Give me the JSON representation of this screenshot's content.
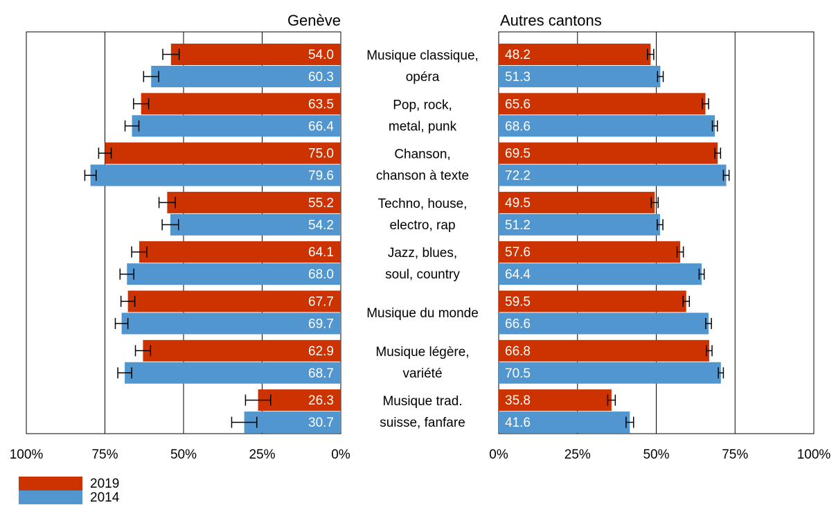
{
  "chart_data": {
    "type": "bar",
    "orientation": "horizontal",
    "layout": "butterfly",
    "categories": [
      [
        "Musique classique,",
        "opéra"
      ],
      [
        "Pop, rock,",
        "metal, punk"
      ],
      [
        "Chanson,",
        "chanson à texte"
      ],
      [
        "Techno, house,",
        "electro, rap"
      ],
      [
        "Jazz, blues,",
        "soul, country"
      ],
      [
        "Musique du monde"
      ],
      [
        "Musique légère,",
        "variété"
      ],
      [
        "Musique trad.",
        "suisse, fanfare"
      ]
    ],
    "panels": [
      {
        "title": "Genève",
        "direction": "leftward",
        "xlim": [
          0,
          100
        ],
        "ticks": [
          "100%",
          "75%",
          "50%",
          "25%",
          "0%"
        ],
        "tick_values": [
          100,
          75,
          50,
          25,
          0
        ],
        "series": [
          {
            "name": "2019",
            "values": [
              54.0,
              63.5,
              75.0,
              55.2,
              64.1,
              67.7,
              62.9,
              26.3
            ],
            "error": [
              2.6,
              2.4,
              2.0,
              2.6,
              2.4,
              2.2,
              2.4,
              4.0
            ]
          },
          {
            "name": "2014",
            "values": [
              60.3,
              66.4,
              79.6,
              54.2,
              68.0,
              69.7,
              68.7,
              30.7
            ],
            "error": [
              2.4,
              2.2,
              1.8,
              2.6,
              2.2,
              2.0,
              2.2,
              4.0
            ]
          }
        ],
        "labels": [
          [
            "54.0",
            "63.5",
            "75.0",
            "55.2",
            "64.1",
            "67.7",
            "62.9",
            "26.3"
          ],
          [
            "60.3",
            "66.4",
            "79.6",
            "54.2",
            "68.0",
            "69.7",
            "68.7",
            "30.7"
          ]
        ]
      },
      {
        "title": "Autres cantons",
        "direction": "rightward",
        "xlim": [
          0,
          100
        ],
        "ticks": [
          "0%",
          "25%",
          "50%",
          "75%",
          "100%"
        ],
        "tick_values": [
          0,
          25,
          50,
          75,
          100
        ],
        "series": [
          {
            "name": "2019",
            "values": [
              48.2,
              65.6,
              69.5,
              49.5,
              57.6,
              59.5,
              66.8,
              35.8
            ],
            "error": [
              1.0,
              1.0,
              0.9,
              1.1,
              1.0,
              1.0,
              0.9,
              1.2
            ]
          },
          {
            "name": "2014",
            "values": [
              51.3,
              68.6,
              72.2,
              51.2,
              64.4,
              66.6,
              70.5,
              41.6
            ],
            "error": [
              0.9,
              0.8,
              0.9,
              0.9,
              0.8,
              0.9,
              0.8,
              1.2
            ]
          }
        ],
        "labels": [
          [
            "48.2",
            "65.6",
            "69.5",
            "49.5",
            "57.6",
            "59.5",
            "66.8",
            "35.8"
          ],
          [
            "51.3",
            "68.6",
            "72.2",
            "51.2",
            "64.4",
            "66.6",
            "70.5",
            "41.6"
          ]
        ]
      }
    ],
    "legend": {
      "placement": "bottom-left",
      "items": [
        {
          "name": "2019",
          "color": "#cc3300"
        },
        {
          "name": "2014",
          "color": "#5296d0"
        }
      ]
    },
    "grid": true,
    "colors": {
      "2019": "#cc3300",
      "2014": "#5296d0"
    }
  }
}
